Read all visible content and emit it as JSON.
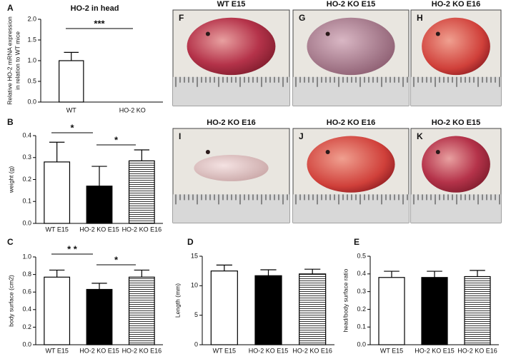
{
  "chart_data": [
    {
      "type": "bar",
      "panel": "A",
      "title": "HO-2 in head",
      "ylabel": [
        "Relative HO-2 mRNA expression",
        "in relation to  WT mice"
      ],
      "categories": [
        "WT",
        "HO-2 KO"
      ],
      "values": [
        1.0,
        0
      ],
      "errors": [
        0.2,
        null
      ],
      "fills": [
        "#ffffff",
        "#ffffff"
      ],
      "hatch": [
        false,
        false
      ],
      "ylim": [
        0,
        2.0
      ],
      "yticks": [
        {
          "value": 0,
          "label": "0.0"
        },
        0.5,
        {
          "value": 1,
          "label": "1.0"
        },
        1.5,
        {
          "value": 2,
          "label": "2.0"
        }
      ],
      "annotations": [
        "***"
      ]
    },
    {
      "type": "bar",
      "panel": "B",
      "ylabel": "weight (g)",
      "categories": [
        "WT E15",
        "HO-2 KO E15",
        "HO-2 KO E16"
      ],
      "values": [
        0.28,
        0.17,
        0.285
      ],
      "errors": [
        0.09,
        0.09,
        0.05
      ],
      "fills": [
        "#ffffff",
        "#000000",
        "#ffffff"
      ],
      "hatch": [
        false,
        false,
        true
      ],
      "ylim": [
        0,
        0.4
      ],
      "yticks": [
        {
          "value": 0,
          "label": "0.0"
        },
        0.1,
        0.2,
        0.3,
        0.4
      ],
      "annotations": [
        "*",
        "*"
      ]
    },
    {
      "type": "bar",
      "panel": "C",
      "ylabel": "body surface (cm2)",
      "categories": [
        "WT E15",
        "HO-2 KO E15",
        "HO-2 KO E16"
      ],
      "values": [
        0.77,
        0.63,
        0.77
      ],
      "errors": [
        0.08,
        0.07,
        0.08
      ],
      "fills": [
        "#ffffff",
        "#000000",
        "#ffffff"
      ],
      "hatch": [
        false,
        false,
        true
      ],
      "ylim": [
        0,
        1.0
      ],
      "yticks": [
        {
          "value": 0,
          "label": "0.0"
        },
        0.2,
        0.4,
        0.6,
        0.8,
        {
          "value": 1,
          "label": "1.0"
        }
      ],
      "annotations": [
        "* *",
        "*"
      ]
    },
    {
      "type": "bar",
      "panel": "D",
      "ylabel": "Length (mm)",
      "categories": [
        "WT E15",
        "HO-2 KO E15",
        "HO-2 KO E16"
      ],
      "values": [
        12.5,
        11.7,
        12.0
      ],
      "errors": [
        1.0,
        1.0,
        0.8
      ],
      "fills": [
        "#ffffff",
        "#000000",
        "#ffffff"
      ],
      "hatch": [
        false,
        false,
        true
      ],
      "ylim": [
        0,
        15
      ],
      "yticks": [
        0,
        5,
        10,
        15
      ],
      "annotations": []
    },
    {
      "type": "bar",
      "panel": "E",
      "ylabel": "head/body surface ratio",
      "categories": [
        "WT E15",
        "HO-2 KO E15",
        "HO-2 KO E16"
      ],
      "values": [
        0.38,
        0.38,
        0.385
      ],
      "errors": [
        0.035,
        0.035,
        0.035
      ],
      "fills": [
        "#ffffff",
        "#000000",
        "#ffffff"
      ],
      "hatch": [
        false,
        false,
        true
      ],
      "ylim": [
        0,
        0.5
      ],
      "yticks": [
        {
          "value": 0,
          "label": "0.0"
        },
        0.1,
        0.2,
        0.3,
        0.4,
        0.5
      ],
      "annotations": []
    }
  ],
  "photos": [
    {
      "letter": "F",
      "title": "WT E15"
    },
    {
      "letter": "G",
      "title": "HO-2 KO E15"
    },
    {
      "letter": "H",
      "title": "HO-2 KO E16"
    },
    {
      "letter": "I",
      "title": "HO-2 KO E16"
    },
    {
      "letter": "J",
      "title": "HO-2 KO E16"
    },
    {
      "letter": "K",
      "title": "HO-2 KO E15"
    }
  ]
}
